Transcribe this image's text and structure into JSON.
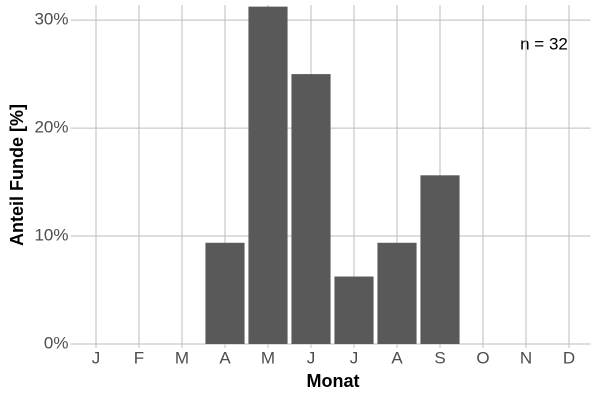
{
  "chart_data": {
    "type": "bar",
    "x_label": "Monat",
    "y_label": "Anteil Funde [%]",
    "annotation": "n = 32",
    "categories": [
      "J",
      "F",
      "M",
      "A",
      "M",
      "J",
      "J",
      "A",
      "S",
      "O",
      "N",
      "D"
    ],
    "values": [
      0,
      0,
      0,
      9.375,
      31.25,
      25,
      6.25,
      9.375,
      15.625,
      0,
      0,
      0
    ],
    "color": "#595959",
    "ylim": [
      0,
      31.4
    ],
    "yticks": [
      {
        "value": 0,
        "label": "0%"
      },
      {
        "value": 10,
        "label": "10%"
      },
      {
        "value": 20,
        "label": "20%"
      },
      {
        "value": 30,
        "label": "30%"
      }
    ],
    "grid": true
  }
}
